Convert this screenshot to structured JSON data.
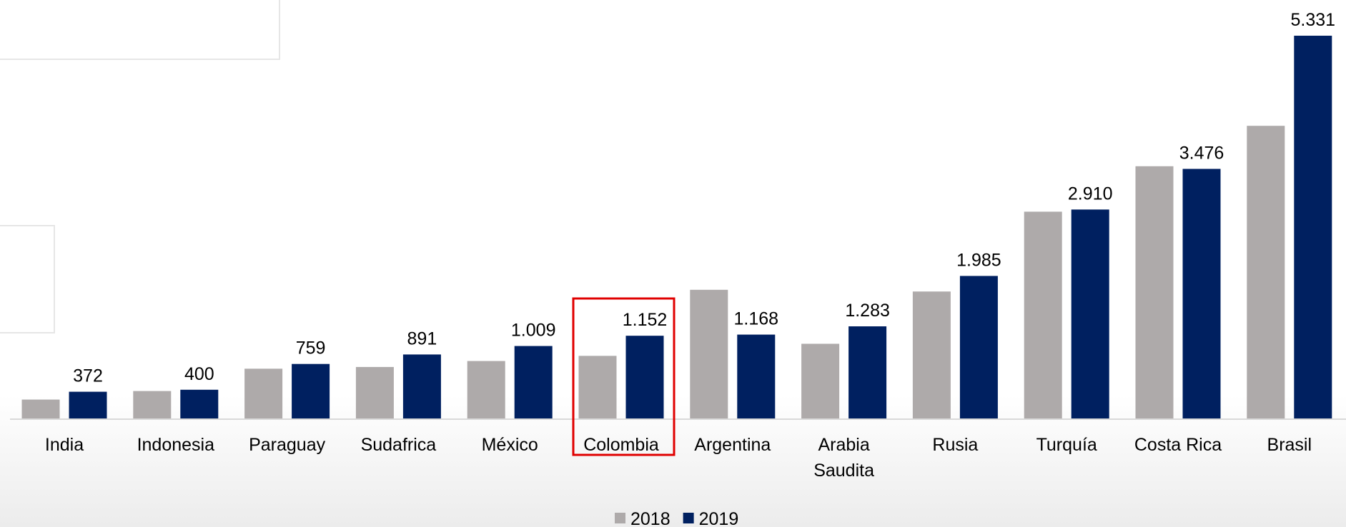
{
  "chart_data": {
    "type": "bar",
    "categories": [
      "India",
      "Indonesia",
      "Paraguay",
      "Sudafrica",
      "México",
      "Colombia",
      "Argentina",
      "Arabia Saudita",
      "Rusia",
      "Turquía",
      "Costa Rica",
      "Brasil"
    ],
    "series": [
      {
        "name": "2018",
        "color": "#aeaaaa",
        "values": [
          263,
          382,
          693,
          717,
          800,
          872,
          1792,
          1040,
          1768,
          2880,
          3513,
          4076
        ]
      },
      {
        "name": "2019",
        "color": "#002060",
        "values": [
          372,
          400,
          759,
          891,
          1009,
          1152,
          1168,
          1283,
          1985,
          2910,
          3476,
          5331
        ],
        "value_labels": [
          "372",
          "400",
          "759",
          "891",
          "1.009",
          "1.152",
          "1.168",
          "1.283",
          "1.985",
          "2.910",
          "3.476",
          "5.331"
        ]
      }
    ]
  }
}
